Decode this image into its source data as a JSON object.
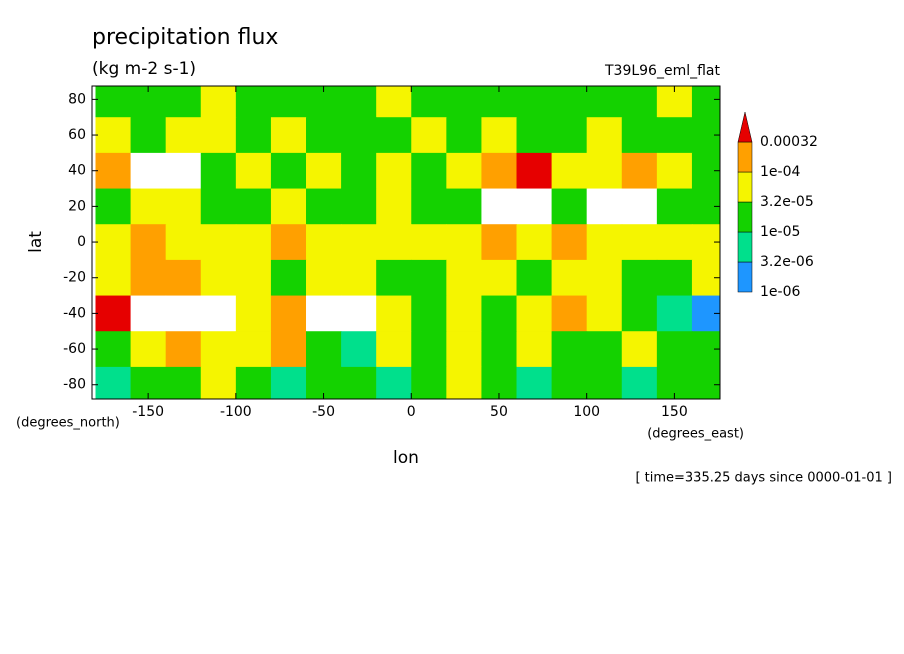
{
  "chart_data": {
    "type": "contour",
    "title": "precipitation flux",
    "subtitle": "(kg m-2 s-1)",
    "annotation": "T39L96_eml_flat",
    "ylabel": "lat",
    "xlabel": "lon",
    "ylabel_units": "(degrees_north)",
    "xlabel_units": "(degrees_east)",
    "footer": "[ time=335.25 days since 0000-01-01 ]",
    "xlim": [
      -182,
      176
    ],
    "ylim": [
      -88,
      87.5
    ],
    "xticks": [
      -150,
      -100,
      -50,
      0,
      50,
      100,
      150
    ],
    "yticks": [
      -80,
      -60,
      -40,
      -20,
      0,
      20,
      40,
      60,
      80
    ],
    "lon": [
      -170,
      -150,
      -130,
      -110,
      -90,
      -70,
      -50,
      -30,
      -10,
      10,
      30,
      50,
      70,
      90,
      110,
      130,
      150,
      170
    ],
    "lat": [
      80,
      60,
      40,
      20,
      0,
      -20,
      -40,
      -60,
      -80
    ],
    "levels": [
      {
        "value": 1e-06,
        "label": "1e-06"
      },
      {
        "value": 3.2e-06,
        "label": "3.2e-06"
      },
      {
        "value": 1e-05,
        "label": "1e-05"
      },
      {
        "value": 3.2e-05,
        "label": "3.2e-05"
      },
      {
        "value": 0.0001,
        "label": "1e-04"
      },
      {
        "value": 0.00032,
        "label": "0.00032"
      }
    ],
    "colors": [
      "#ffffff",
      "#1e96ff",
      "#00e08c",
      "#14d200",
      "#f5f500",
      "#ffa000",
      "#e60000"
    ],
    "values": [
      [
        2e-05,
        2e-05,
        2e-05,
        6e-05,
        2e-05,
        2e-05,
        2e-05,
        2e-05,
        6e-05,
        2e-05,
        2e-05,
        2e-05,
        2e-05,
        2e-05,
        2e-05,
        2e-05,
        6e-05,
        2e-05
      ],
      [
        6e-05,
        2e-05,
        6e-05,
        6e-05,
        2e-05,
        6e-05,
        2e-05,
        2e-05,
        2e-05,
        6e-05,
        2e-05,
        6e-05,
        2e-05,
        2e-05,
        6e-05,
        2e-05,
        2e-05,
        2e-05
      ],
      [
        0.00015,
        5e-07,
        5e-07,
        2e-05,
        6e-05,
        2e-05,
        6e-05,
        2e-05,
        6e-05,
        2e-05,
        6e-05,
        0.00015,
        0.0004,
        6e-05,
        6e-05,
        0.00015,
        6e-05,
        2e-05
      ],
      [
        2e-05,
        6e-05,
        6e-05,
        2e-05,
        2e-05,
        6e-05,
        2e-05,
        2e-05,
        6e-05,
        2e-05,
        2e-05,
        5e-07,
        5e-07,
        2e-05,
        5e-07,
        5e-07,
        2e-05,
        2e-05
      ],
      [
        6e-05,
        0.00015,
        6e-05,
        6e-05,
        6e-05,
        0.00015,
        6e-05,
        6e-05,
        6e-05,
        6e-05,
        6e-05,
        0.00015,
        6e-05,
        0.00015,
        6e-05,
        6e-05,
        6e-05,
        6e-05
      ],
      [
        6e-05,
        0.00015,
        0.00015,
        6e-05,
        6e-05,
        2e-05,
        6e-05,
        6e-05,
        2e-05,
        2e-05,
        6e-05,
        6e-05,
        2e-05,
        6e-05,
        6e-05,
        2e-05,
        2e-05,
        6e-05
      ],
      [
        0.0004,
        5e-07,
        5e-07,
        5e-07,
        6e-05,
        0.00015,
        5e-07,
        5e-07,
        6e-05,
        2e-05,
        6e-05,
        2e-05,
        6e-05,
        0.00015,
        6e-05,
        2e-05,
        6e-06,
        2e-06
      ],
      [
        2e-05,
        6e-05,
        0.00015,
        6e-05,
        6e-05,
        0.00015,
        2e-05,
        6e-06,
        6e-05,
        2e-05,
        6e-05,
        2e-05,
        6e-05,
        2e-05,
        2e-05,
        6e-05,
        2e-05,
        2e-05
      ],
      [
        6e-06,
        2e-05,
        2e-05,
        6e-05,
        2e-05,
        6e-06,
        2e-05,
        2e-05,
        6e-06,
        2e-05,
        6e-05,
        2e-05,
        6e-06,
        2e-05,
        2e-05,
        6e-06,
        2e-05,
        2e-05
      ]
    ]
  }
}
